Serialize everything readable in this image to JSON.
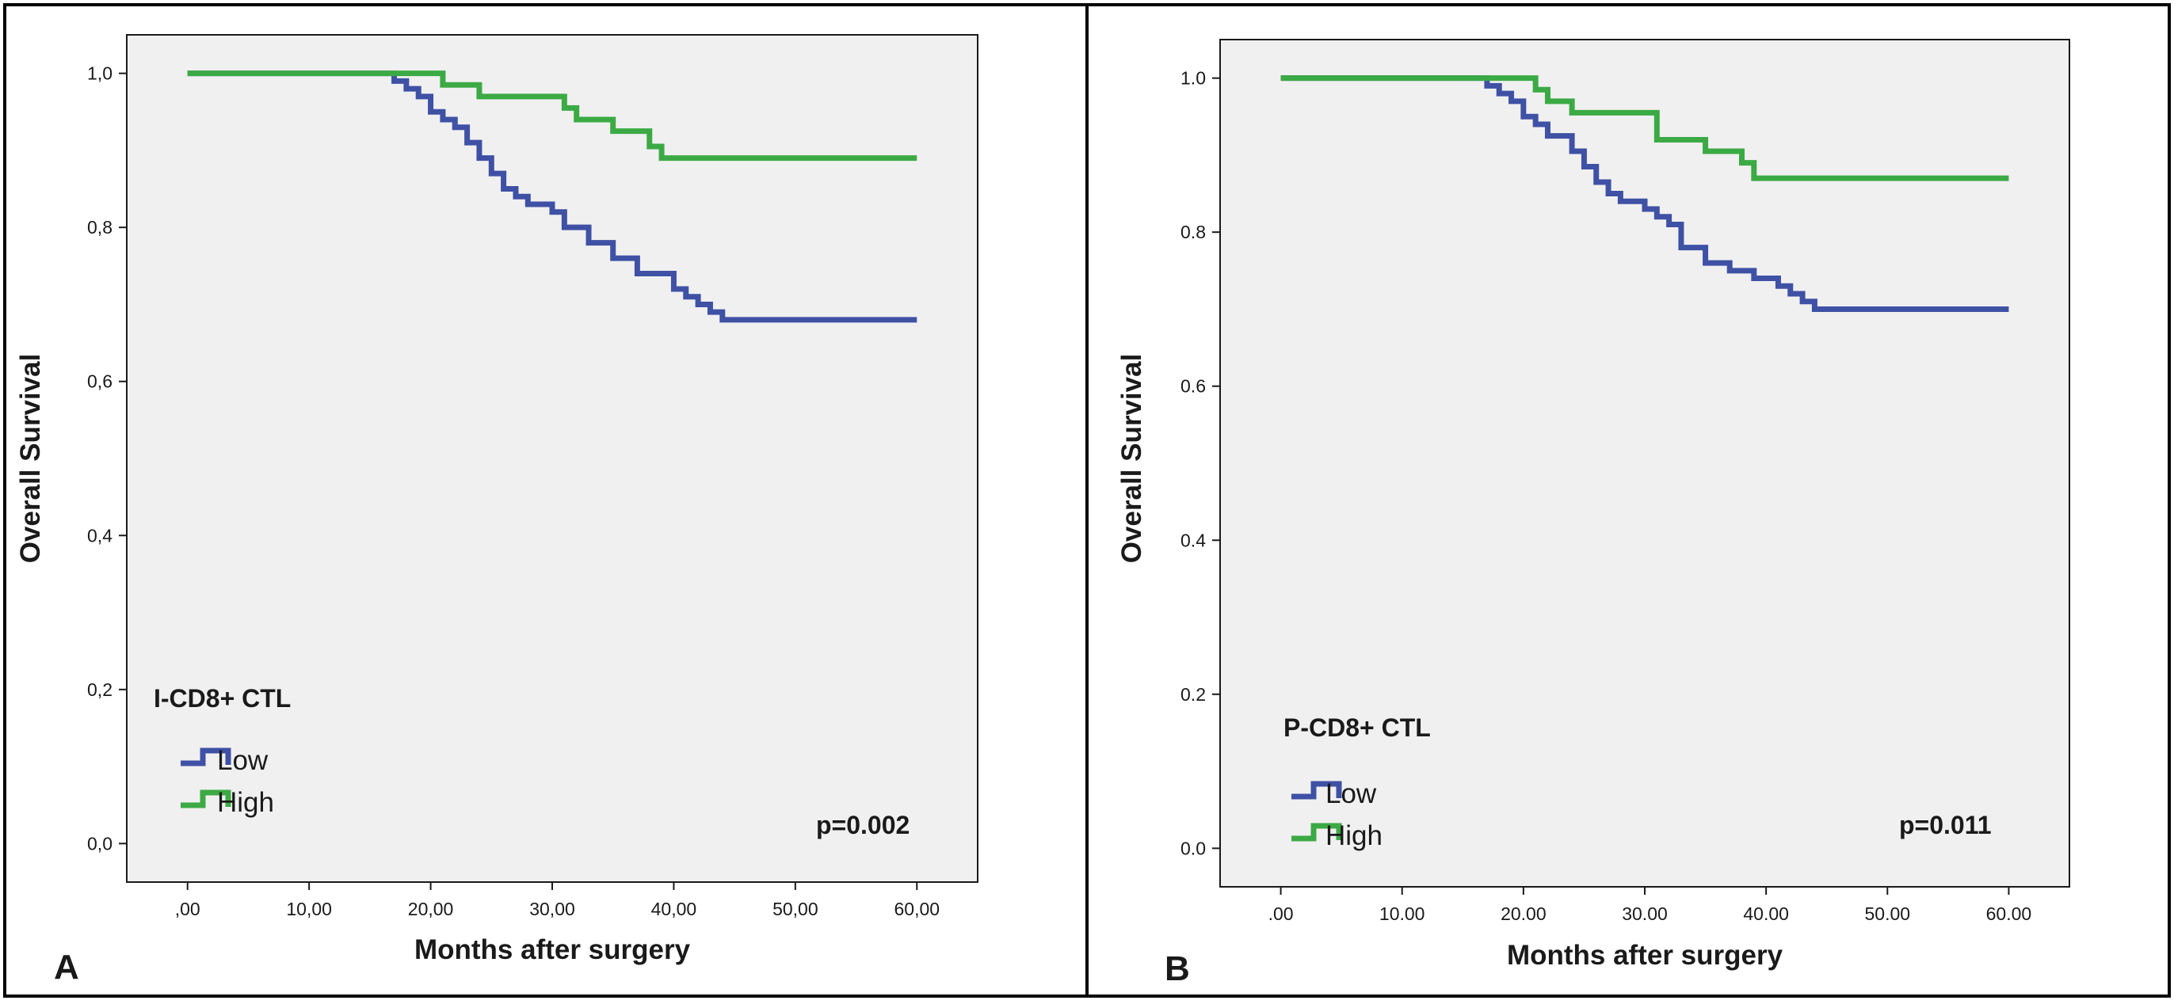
{
  "chart_data": [
    {
      "type": "line",
      "panel_letter": "A",
      "xlabel": "Months after surgery",
      "ylabel": "Overall Survival",
      "xlim": [
        -5,
        65
      ],
      "ylim": [
        -0.05,
        1.05
      ],
      "x_ticks": [
        0,
        10,
        20,
        30,
        40,
        50,
        60
      ],
      "x_tick_labels": [
        ",00",
        "10,00",
        "20,00",
        "30,00",
        "40,00",
        "50,00",
        "60,00"
      ],
      "y_ticks": [
        0,
        0.2,
        0.4,
        0.6,
        0.8,
        1.0
      ],
      "y_tick_labels": [
        "0,0",
        "0,2",
        "0,4",
        "0,6",
        "0,8",
        "1,0"
      ],
      "legend_title": "I-CD8+ CTL",
      "legend_position": "bottom-left",
      "annotation": "p=0.002",
      "series": [
        {
          "name": "Low",
          "color": "#3f51a5",
          "x": [
            0,
            17,
            18,
            19,
            20,
            21,
            22,
            23,
            24,
            25,
            26,
            27,
            28,
            30,
            31,
            33,
            35,
            37,
            40,
            41,
            42,
            43,
            44,
            60
          ],
          "y": [
            1.0,
            0.99,
            0.98,
            0.97,
            0.95,
            0.94,
            0.93,
            0.91,
            0.89,
            0.87,
            0.85,
            0.84,
            0.83,
            0.82,
            0.8,
            0.78,
            0.76,
            0.74,
            0.72,
            0.71,
            0.7,
            0.69,
            0.68,
            0.68
          ]
        },
        {
          "name": "High",
          "color": "#3caa44",
          "x": [
            0,
            21,
            24,
            31,
            32,
            35,
            38,
            39,
            60
          ],
          "y": [
            1.0,
            0.985,
            0.97,
            0.955,
            0.94,
            0.925,
            0.905,
            0.89,
            0.89
          ]
        }
      ]
    },
    {
      "type": "line",
      "panel_letter": "B",
      "xlabel": "Months after surgery",
      "ylabel": "Overall Survival",
      "xlim": [
        -5,
        65
      ],
      "ylim": [
        -0.05,
        1.05
      ],
      "x_ticks": [
        0,
        10,
        20,
        30,
        40,
        50,
        60
      ],
      "x_tick_labels": [
        ".00",
        "10.00",
        "20.00",
        "30.00",
        "40.00",
        "50.00",
        "60.00"
      ],
      "y_ticks": [
        0,
        0.2,
        0.4,
        0.6,
        0.8,
        1.0
      ],
      "y_tick_labels": [
        "0.0",
        "0.2",
        "0.4",
        "0.6",
        "0.8",
        "1.0"
      ],
      "legend_title": "P-CD8+ CTL",
      "legend_position": "bottom-left",
      "annotation": "p=0.011",
      "series": [
        {
          "name": "Low",
          "color": "#3f51a5",
          "x": [
            0,
            17,
            18,
            19,
            20,
            21,
            22,
            24,
            25,
            26,
            27,
            28,
            30,
            31,
            32,
            33,
            35,
            37,
            39,
            41,
            42,
            43,
            44,
            60
          ],
          "y": [
            1.0,
            0.99,
            0.98,
            0.97,
            0.95,
            0.94,
            0.925,
            0.905,
            0.885,
            0.865,
            0.85,
            0.84,
            0.83,
            0.82,
            0.81,
            0.78,
            0.76,
            0.75,
            0.74,
            0.73,
            0.72,
            0.71,
            0.7,
            0.7
          ]
        },
        {
          "name": "High",
          "color": "#3caa44",
          "x": [
            0,
            21,
            22,
            24,
            31,
            35,
            38,
            39,
            60
          ],
          "y": [
            1.0,
            0.985,
            0.97,
            0.955,
            0.92,
            0.905,
            0.89,
            0.87,
            0.87
          ]
        }
      ]
    }
  ]
}
